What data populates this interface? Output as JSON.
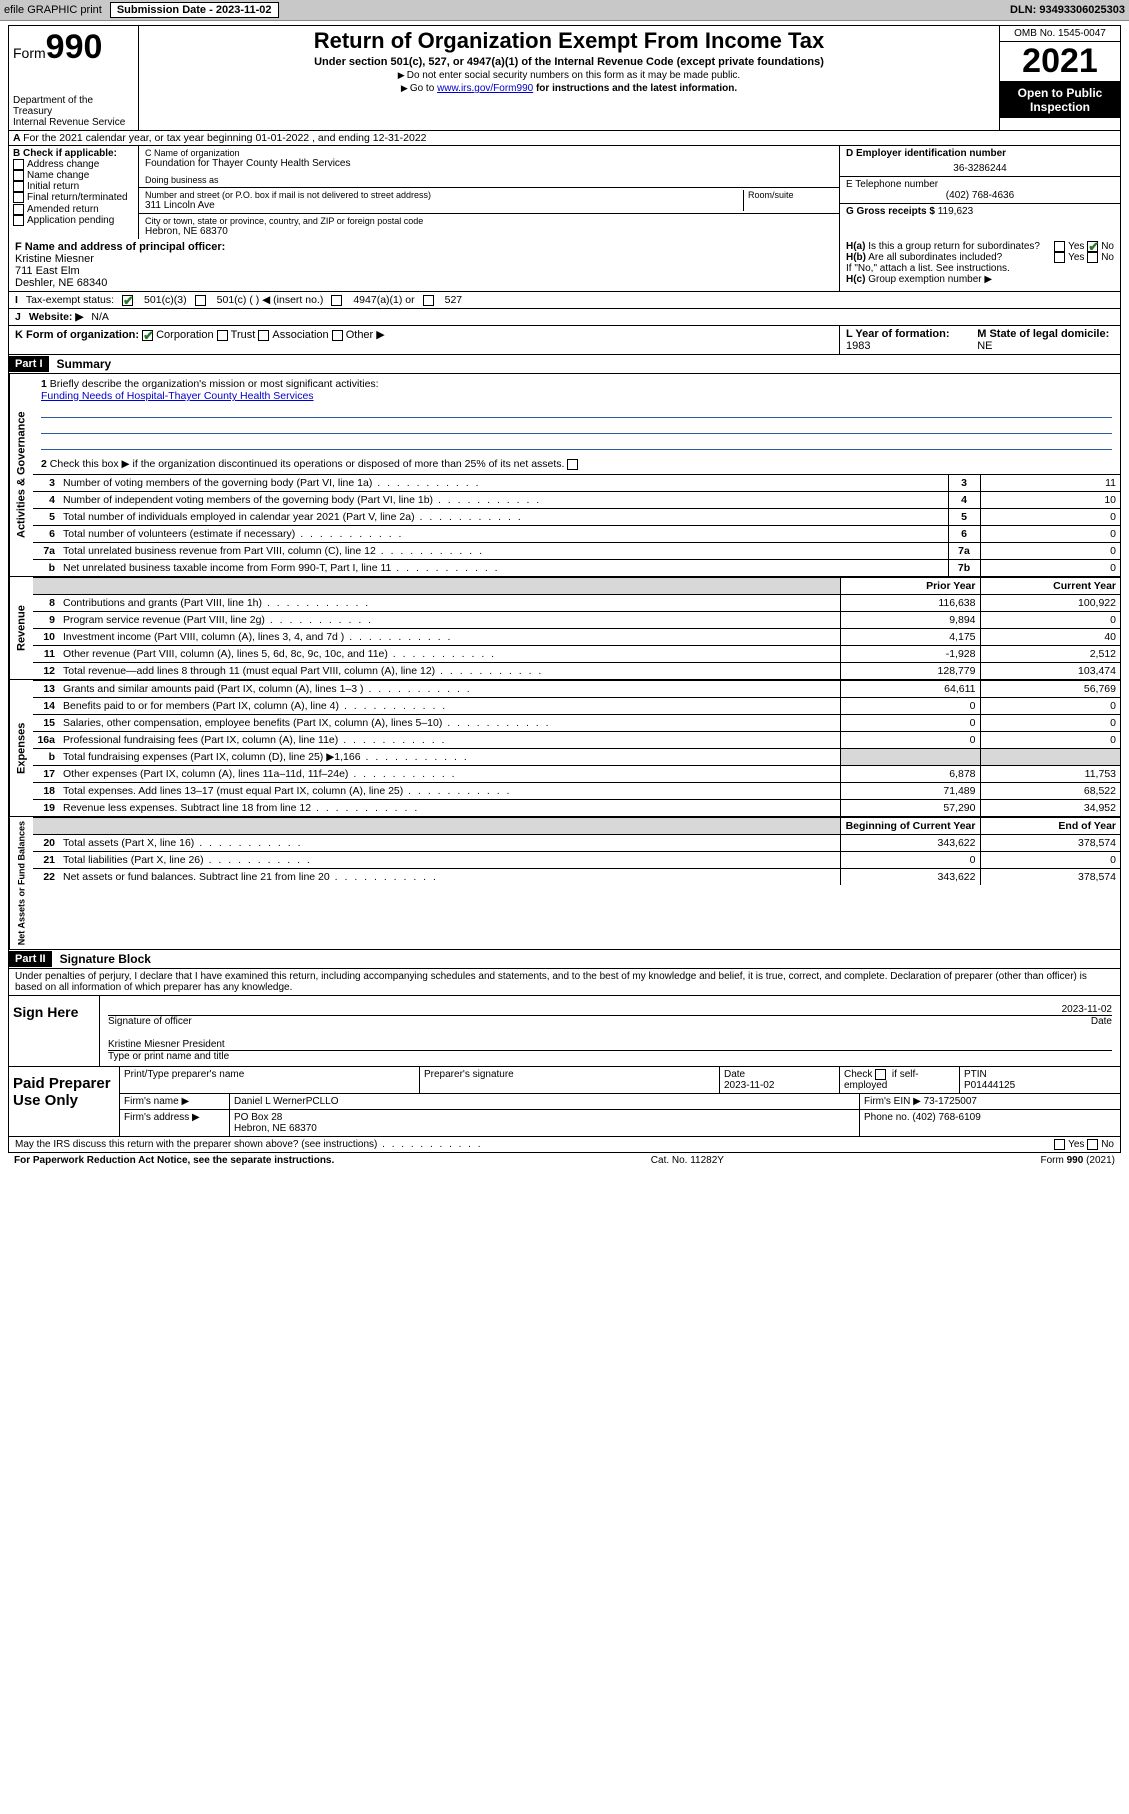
{
  "toolbar": {
    "efile": "efile GRAPHIC print",
    "sub_label": "Submission Date - ",
    "sub_date": "2023-11-02",
    "dln_label": "DLN: ",
    "dln": "93493306025303"
  },
  "header": {
    "form_word": "Form",
    "form_num": "990",
    "dept": "Department of the Treasury",
    "irs": "Internal Revenue Service",
    "title": "Return of Organization Exempt From Income Tax",
    "sub": "Under section 501(c), 527, or 4947(a)(1) of the Internal Revenue Code (except private foundations)",
    "note1": "Do not enter social security numbers on this form as it may be made public.",
    "note2_a": "Go to ",
    "note2_link": "www.irs.gov/Form990",
    "note2_b": " for instructions and the latest information.",
    "omb": "OMB No. 1545-0047",
    "year": "2021",
    "open": "Open to Public Inspection"
  },
  "A": {
    "text": "For the 2021 calendar year, or tax year beginning 01-01-2022   , and ending 12-31-2022"
  },
  "B": {
    "label": "B Check if applicable:",
    "items": [
      "Address change",
      "Name change",
      "Initial return",
      "Final return/terminated",
      "Amended return",
      "Application pending"
    ]
  },
  "C": {
    "name_lbl": "C Name of organization",
    "name": "Foundation for Thayer County Health Services",
    "dba_lbl": "Doing business as",
    "street_lbl": "Number and street (or P.O. box if mail is not delivered to street address)",
    "room_lbl": "Room/suite",
    "street": "311 Lincoln Ave",
    "city_lbl": "City or town, state or province, country, and ZIP or foreign postal code",
    "city": "Hebron, NE  68370"
  },
  "D": {
    "lbl": "D Employer identification number",
    "val": "36-3286244"
  },
  "E": {
    "lbl": "E Telephone number",
    "val": "(402) 768-4636"
  },
  "G": {
    "lbl": "G Gross receipts $ ",
    "val": "119,623"
  },
  "F": {
    "lbl": "F Name and address of principal officer:",
    "name": "Kristine Miesner",
    "addr1": "711 East Elm",
    "addr2": "Deshler, NE  68340"
  },
  "H": {
    "a": "Is this a group return for subordinates?",
    "b": "Are all subordinates included?",
    "ifno": "If \"No,\" attach a list. See instructions.",
    "c": "Group exemption number ▶",
    "yes": "Yes",
    "no": "No"
  },
  "I": {
    "lbl": "Tax-exempt status:",
    "o1": "501(c)(3)",
    "o2": "501(c) (  ) ◀ (insert no.)",
    "o3": "4947(a)(1) or",
    "o4": "527"
  },
  "J": {
    "lbl": "Website: ▶",
    "val": "N/A"
  },
  "K": {
    "lbl": "K Form of organization:",
    "o1": "Corporation",
    "o2": "Trust",
    "o3": "Association",
    "o4": "Other ▶"
  },
  "L": {
    "lbl": "L Year of formation: ",
    "val": "1983"
  },
  "M": {
    "lbl": "M State of legal domicile: ",
    "val": "NE"
  },
  "part1": {
    "hdr": "Part I",
    "title": "Summary"
  },
  "mission": {
    "q1": "Briefly describe the organization's mission or most significant activities:",
    "text": "Funding Needs of Hospital-Thayer County Health Services",
    "q2": "Check this box ▶  if the organization discontinued its operations or disposed of more than 25% of its net assets."
  },
  "gov_rows": [
    {
      "n": "3",
      "txt": "Number of voting members of the governing body (Part VI, line 1a)",
      "k": "3",
      "v": "11"
    },
    {
      "n": "4",
      "txt": "Number of independent voting members of the governing body (Part VI, line 1b)",
      "k": "4",
      "v": "10"
    },
    {
      "n": "5",
      "txt": "Total number of individuals employed in calendar year 2021 (Part V, line 2a)",
      "k": "5",
      "v": "0"
    },
    {
      "n": "6",
      "txt": "Total number of volunteers (estimate if necessary)",
      "k": "6",
      "v": "0"
    },
    {
      "n": "7a",
      "txt": "Total unrelated business revenue from Part VIII, column (C), line 12",
      "k": "7a",
      "v": "0"
    },
    {
      "n": "b",
      "txt": "Net unrelated business taxable income from Form 990-T, Part I, line 11",
      "k": "7b",
      "v": "0"
    }
  ],
  "col_hdr": {
    "py": "Prior Year",
    "cy": "Current Year"
  },
  "rev_rows": [
    {
      "n": "8",
      "txt": "Contributions and grants (Part VIII, line 1h)",
      "py": "116,638",
      "cy": "100,922"
    },
    {
      "n": "9",
      "txt": "Program service revenue (Part VIII, line 2g)",
      "py": "9,894",
      "cy": "0"
    },
    {
      "n": "10",
      "txt": "Investment income (Part VIII, column (A), lines 3, 4, and 7d )",
      "py": "4,175",
      "cy": "40"
    },
    {
      "n": "11",
      "txt": "Other revenue (Part VIII, column (A), lines 5, 6d, 8c, 9c, 10c, and 11e)",
      "py": "-1,928",
      "cy": "2,512"
    },
    {
      "n": "12",
      "txt": "Total revenue—add lines 8 through 11 (must equal Part VIII, column (A), line 12)",
      "py": "128,779",
      "cy": "103,474"
    }
  ],
  "exp_rows": [
    {
      "n": "13",
      "txt": "Grants and similar amounts paid (Part IX, column (A), lines 1–3 )",
      "py": "64,611",
      "cy": "56,769"
    },
    {
      "n": "14",
      "txt": "Benefits paid to or for members (Part IX, column (A), line 4)",
      "py": "0",
      "cy": "0"
    },
    {
      "n": "15",
      "txt": "Salaries, other compensation, employee benefits (Part IX, column (A), lines 5–10)",
      "py": "0",
      "cy": "0"
    },
    {
      "n": "16a",
      "txt": "Professional fundraising fees (Part IX, column (A), line 11e)",
      "py": "0",
      "cy": "0"
    },
    {
      "n": "b",
      "txt": "Total fundraising expenses (Part IX, column (D), line 25) ▶1,166",
      "py": "",
      "cy": "",
      "shade": true
    },
    {
      "n": "17",
      "txt": "Other expenses (Part IX, column (A), lines 11a–11d, 11f–24e)",
      "py": "6,878",
      "cy": "11,753"
    },
    {
      "n": "18",
      "txt": "Total expenses. Add lines 13–17 (must equal Part IX, column (A), line 25)",
      "py": "71,489",
      "cy": "68,522"
    },
    {
      "n": "19",
      "txt": "Revenue less expenses. Subtract line 18 from line 12",
      "py": "57,290",
      "cy": "34,952"
    }
  ],
  "na_hdr": {
    "py": "Beginning of Current Year",
    "cy": "End of Year"
  },
  "na_rows": [
    {
      "n": "20",
      "txt": "Total assets (Part X, line 16)",
      "py": "343,622",
      "cy": "378,574"
    },
    {
      "n": "21",
      "txt": "Total liabilities (Part X, line 26)",
      "py": "0",
      "cy": "0"
    },
    {
      "n": "22",
      "txt": "Net assets or fund balances. Subtract line 21 from line 20",
      "py": "343,622",
      "cy": "378,574"
    }
  ],
  "vlabels": {
    "gov": "Activities & Governance",
    "rev": "Revenue",
    "exp": "Expenses",
    "na": "Net Assets or Fund Balances"
  },
  "part2": {
    "hdr": "Part II",
    "title": "Signature Block"
  },
  "sig": {
    "intro": "Under penalties of perjury, I declare that I have examined this return, including accompanying schedules and statements, and to the best of my knowledge and belief, it is true, correct, and complete. Declaration of preparer (other than officer) is based on all information of which preparer has any knowledge.",
    "here": "Sign Here",
    "off_lbl": "Signature of officer",
    "date_lbl": "Date",
    "date": "2023-11-02",
    "name": "Kristine Miesner President",
    "name_lbl": "Type or print name and title"
  },
  "paid": {
    "left": "Paid Preparer Use Only",
    "h1": "Print/Type preparer's name",
    "h2": "Preparer's signature",
    "h3": "Date",
    "h3v": "2023-11-02",
    "h4a": "Check",
    "h4b": "if self-employed",
    "h5": "PTIN",
    "h5v": "P01444125",
    "firm_lbl": "Firm's name   ▶",
    "firm": "Daniel L WernerPCLLO",
    "ein_lbl": "Firm's EIN ▶ ",
    "ein": "73-1725007",
    "addr_lbl": "Firm's address ▶",
    "addr1": "PO Box 28",
    "addr2": "Hebron, NE  68370",
    "ph_lbl": "Phone no. ",
    "ph": "(402) 768-6109"
  },
  "discuss": {
    "q": "May the IRS discuss this return with the preparer shown above? (see instructions)",
    "yes": "Yes",
    "no": "No"
  },
  "footer": {
    "l": "For Paperwork Reduction Act Notice, see the separate instructions.",
    "m": "Cat. No. 11282Y",
    "r": "Form 990 (2021)"
  }
}
